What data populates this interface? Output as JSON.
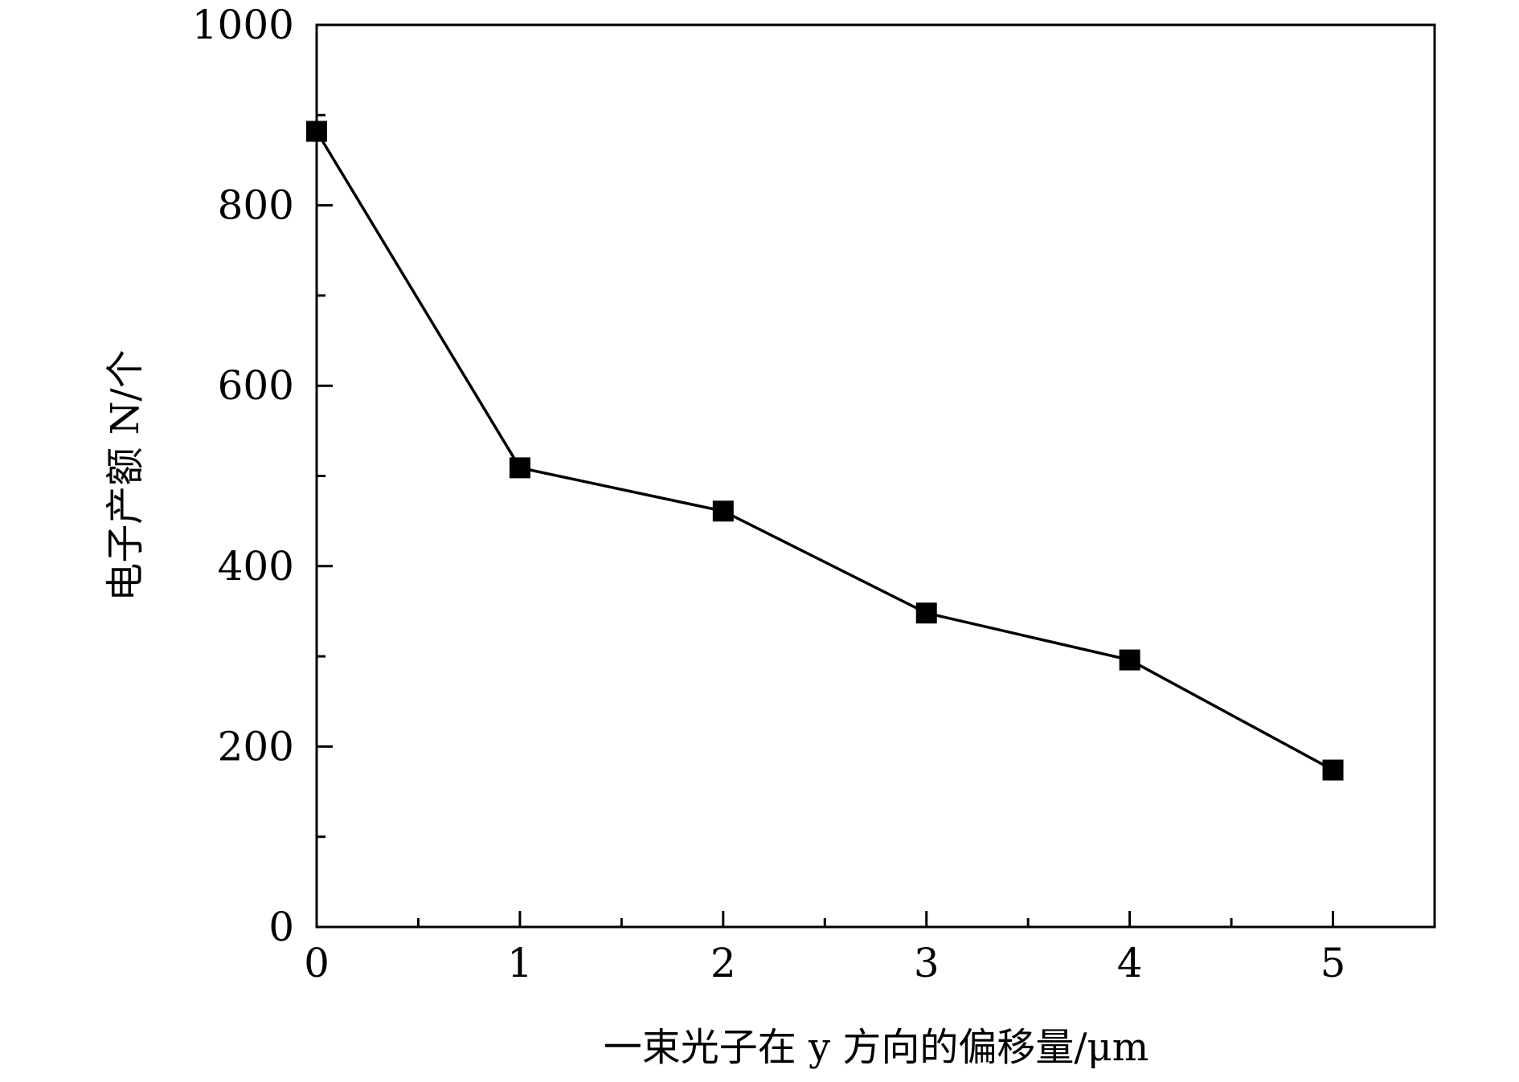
{
  "chart_data": {
    "type": "line",
    "x": [
      0,
      1,
      2,
      3,
      4,
      5
    ],
    "series": [
      {
        "values": [
          882,
          509,
          461,
          348,
          296,
          174
        ],
        "color": "#000000",
        "marker": "square"
      }
    ],
    "xlabel": "一束光子在 y 方向的偏移量/μm",
    "ylabel": "电子产额 N/个",
    "xlim": [
      0,
      5.5
    ],
    "ylim": [
      0,
      1000
    ],
    "xticks": [
      0,
      1,
      2,
      3,
      4,
      5
    ],
    "xtick_labels": [
      "0",
      "1",
      "2",
      "3",
      "4",
      "5"
    ],
    "yticks": [
      0,
      200,
      400,
      600,
      800,
      1000
    ],
    "ytick_labels": [
      "0",
      "200",
      "400",
      "600",
      "800",
      "1000"
    ],
    "x_minor_ticks": [
      0.5,
      1.5,
      2.5,
      3.5,
      4.5
    ],
    "y_minor_ticks": [
      100,
      300,
      500,
      700,
      900
    ],
    "grid": false,
    "legend": "none"
  }
}
